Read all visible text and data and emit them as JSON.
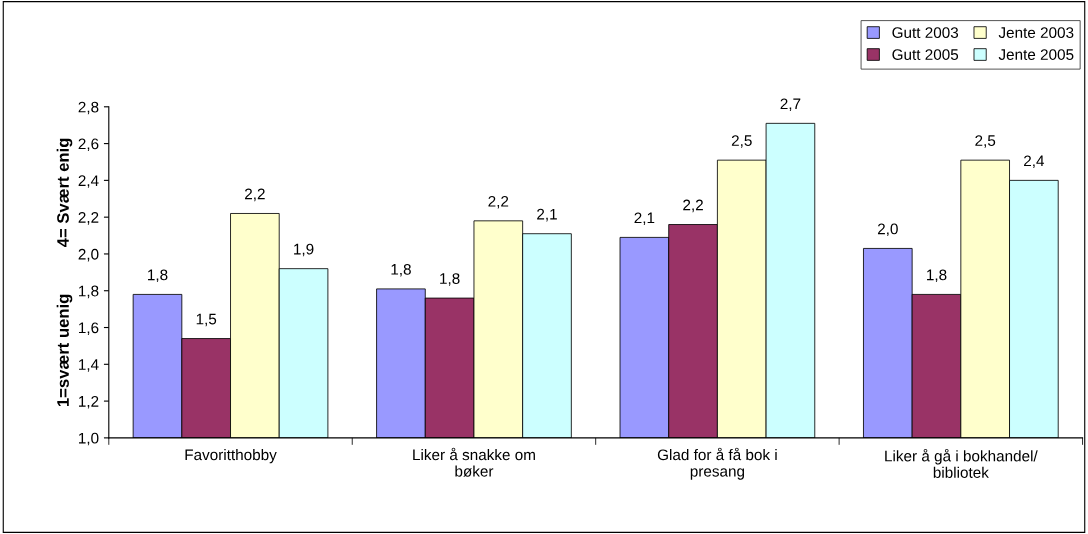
{
  "chart_data": {
    "type": "bar",
    "ylabel": "1=svært uenig          4= Svært enig",
    "categories": [
      "Favoritthobby",
      "Liker å snakke om\nbøker",
      "Glad for å få bok i\npresang",
      "Liker å gå i bokhandel/\nbibliotek"
    ],
    "series": [
      {
        "name": "Gutt 2003",
        "color": "#9999ff",
        "values": [
          1.78,
          1.81,
          2.09,
          2.03
        ],
        "value_labels": [
          "1,8",
          "1,8",
          "2,1",
          "2,0"
        ]
      },
      {
        "name": "Gutt 2005",
        "color": "#993366",
        "values": [
          1.54,
          1.76,
          2.16,
          1.78
        ],
        "value_labels": [
          "1,5",
          "1,8",
          "2,2",
          "1,8"
        ]
      },
      {
        "name": "Jente 2003",
        "color": "#ffffcc",
        "values": [
          2.22,
          2.18,
          2.51,
          2.51
        ],
        "value_labels": [
          "2,2",
          "2,2",
          "2,5",
          "2,5"
        ]
      },
      {
        "name": "Jente 2005",
        "color": "#ccffff",
        "values": [
          1.92,
          2.11,
          2.71,
          2.4
        ],
        "value_labels": [
          "1,9",
          "2,1",
          "2,7",
          "2,4"
        ]
      }
    ],
    "ylim": [
      1.0,
      2.8
    ],
    "yticks": [
      {
        "value": 1.0,
        "label": "1,0"
      },
      {
        "value": 1.2,
        "label": "1,2"
      },
      {
        "value": 1.4,
        "label": "1,4"
      },
      {
        "value": 1.6,
        "label": "1,6"
      },
      {
        "value": 1.8,
        "label": "1,8"
      },
      {
        "value": 2.0,
        "label": "2,0"
      },
      {
        "value": 2.2,
        "label": "2,2"
      },
      {
        "value": 2.4,
        "label": "2,4"
      },
      {
        "value": 2.6,
        "label": "2,6"
      },
      {
        "value": 2.8,
        "label": "2,8"
      }
    ],
    "grid": false,
    "legend": "top right"
  }
}
